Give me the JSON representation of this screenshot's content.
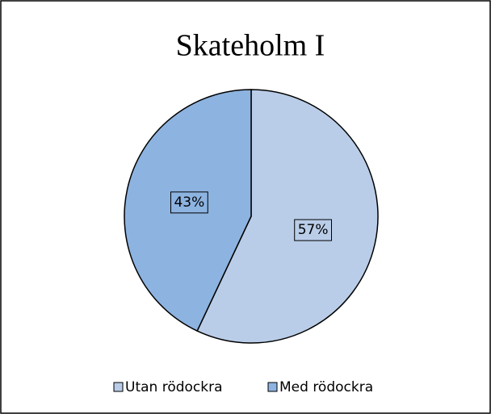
{
  "chart_data": {
    "type": "pie",
    "title": "Skateholm I",
    "categories": [
      "Utan rödockra",
      "Med rödockra"
    ],
    "values": [
      57,
      43
    ],
    "value_labels": [
      "57%",
      "43%"
    ],
    "colors": [
      "#b9cde8",
      "#8db3e0"
    ],
    "legend": "bottom"
  }
}
